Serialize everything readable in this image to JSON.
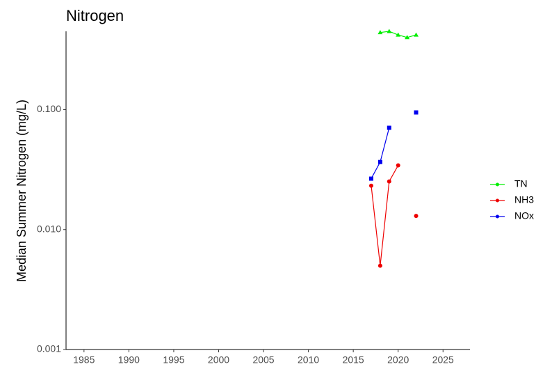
{
  "chart_data": {
    "type": "line",
    "title": "Nitrogen",
    "y_label": "Median Summer Nitrogen (mg/L)",
    "x": [
      2017,
      2018,
      2019,
      2020,
      2021,
      2022
    ],
    "series": [
      {
        "name": "TN",
        "color": "#00ee00",
        "marker": "triangle",
        "values": [
          null,
          0.44,
          0.45,
          0.42,
          0.4,
          0.42
        ]
      },
      {
        "name": "NH3",
        "color": "#ee0000",
        "marker": "circle",
        "values": [
          0.0232,
          0.005,
          0.0252,
          0.0343,
          null,
          0.013
        ]
      },
      {
        "name": "NOx",
        "color": "#0000ee",
        "marker": "square",
        "values": [
          0.0266,
          0.0366,
          0.0706,
          null,
          null,
          0.0948
        ]
      }
    ],
    "xlim": [
      1983,
      2028
    ],
    "xticks": [
      1985,
      1990,
      1995,
      2000,
      2005,
      2010,
      2015,
      2020,
      2025
    ],
    "ylim": [
      0.001,
      0.45
    ],
    "log_y": true,
    "yticks": [
      0.001,
      {
        "value": 0.01,
        "label": "0.010"
      },
      {
        "value": 0.1,
        "label": "0.100"
      }
    ],
    "grid": false,
    "legend": "right"
  }
}
